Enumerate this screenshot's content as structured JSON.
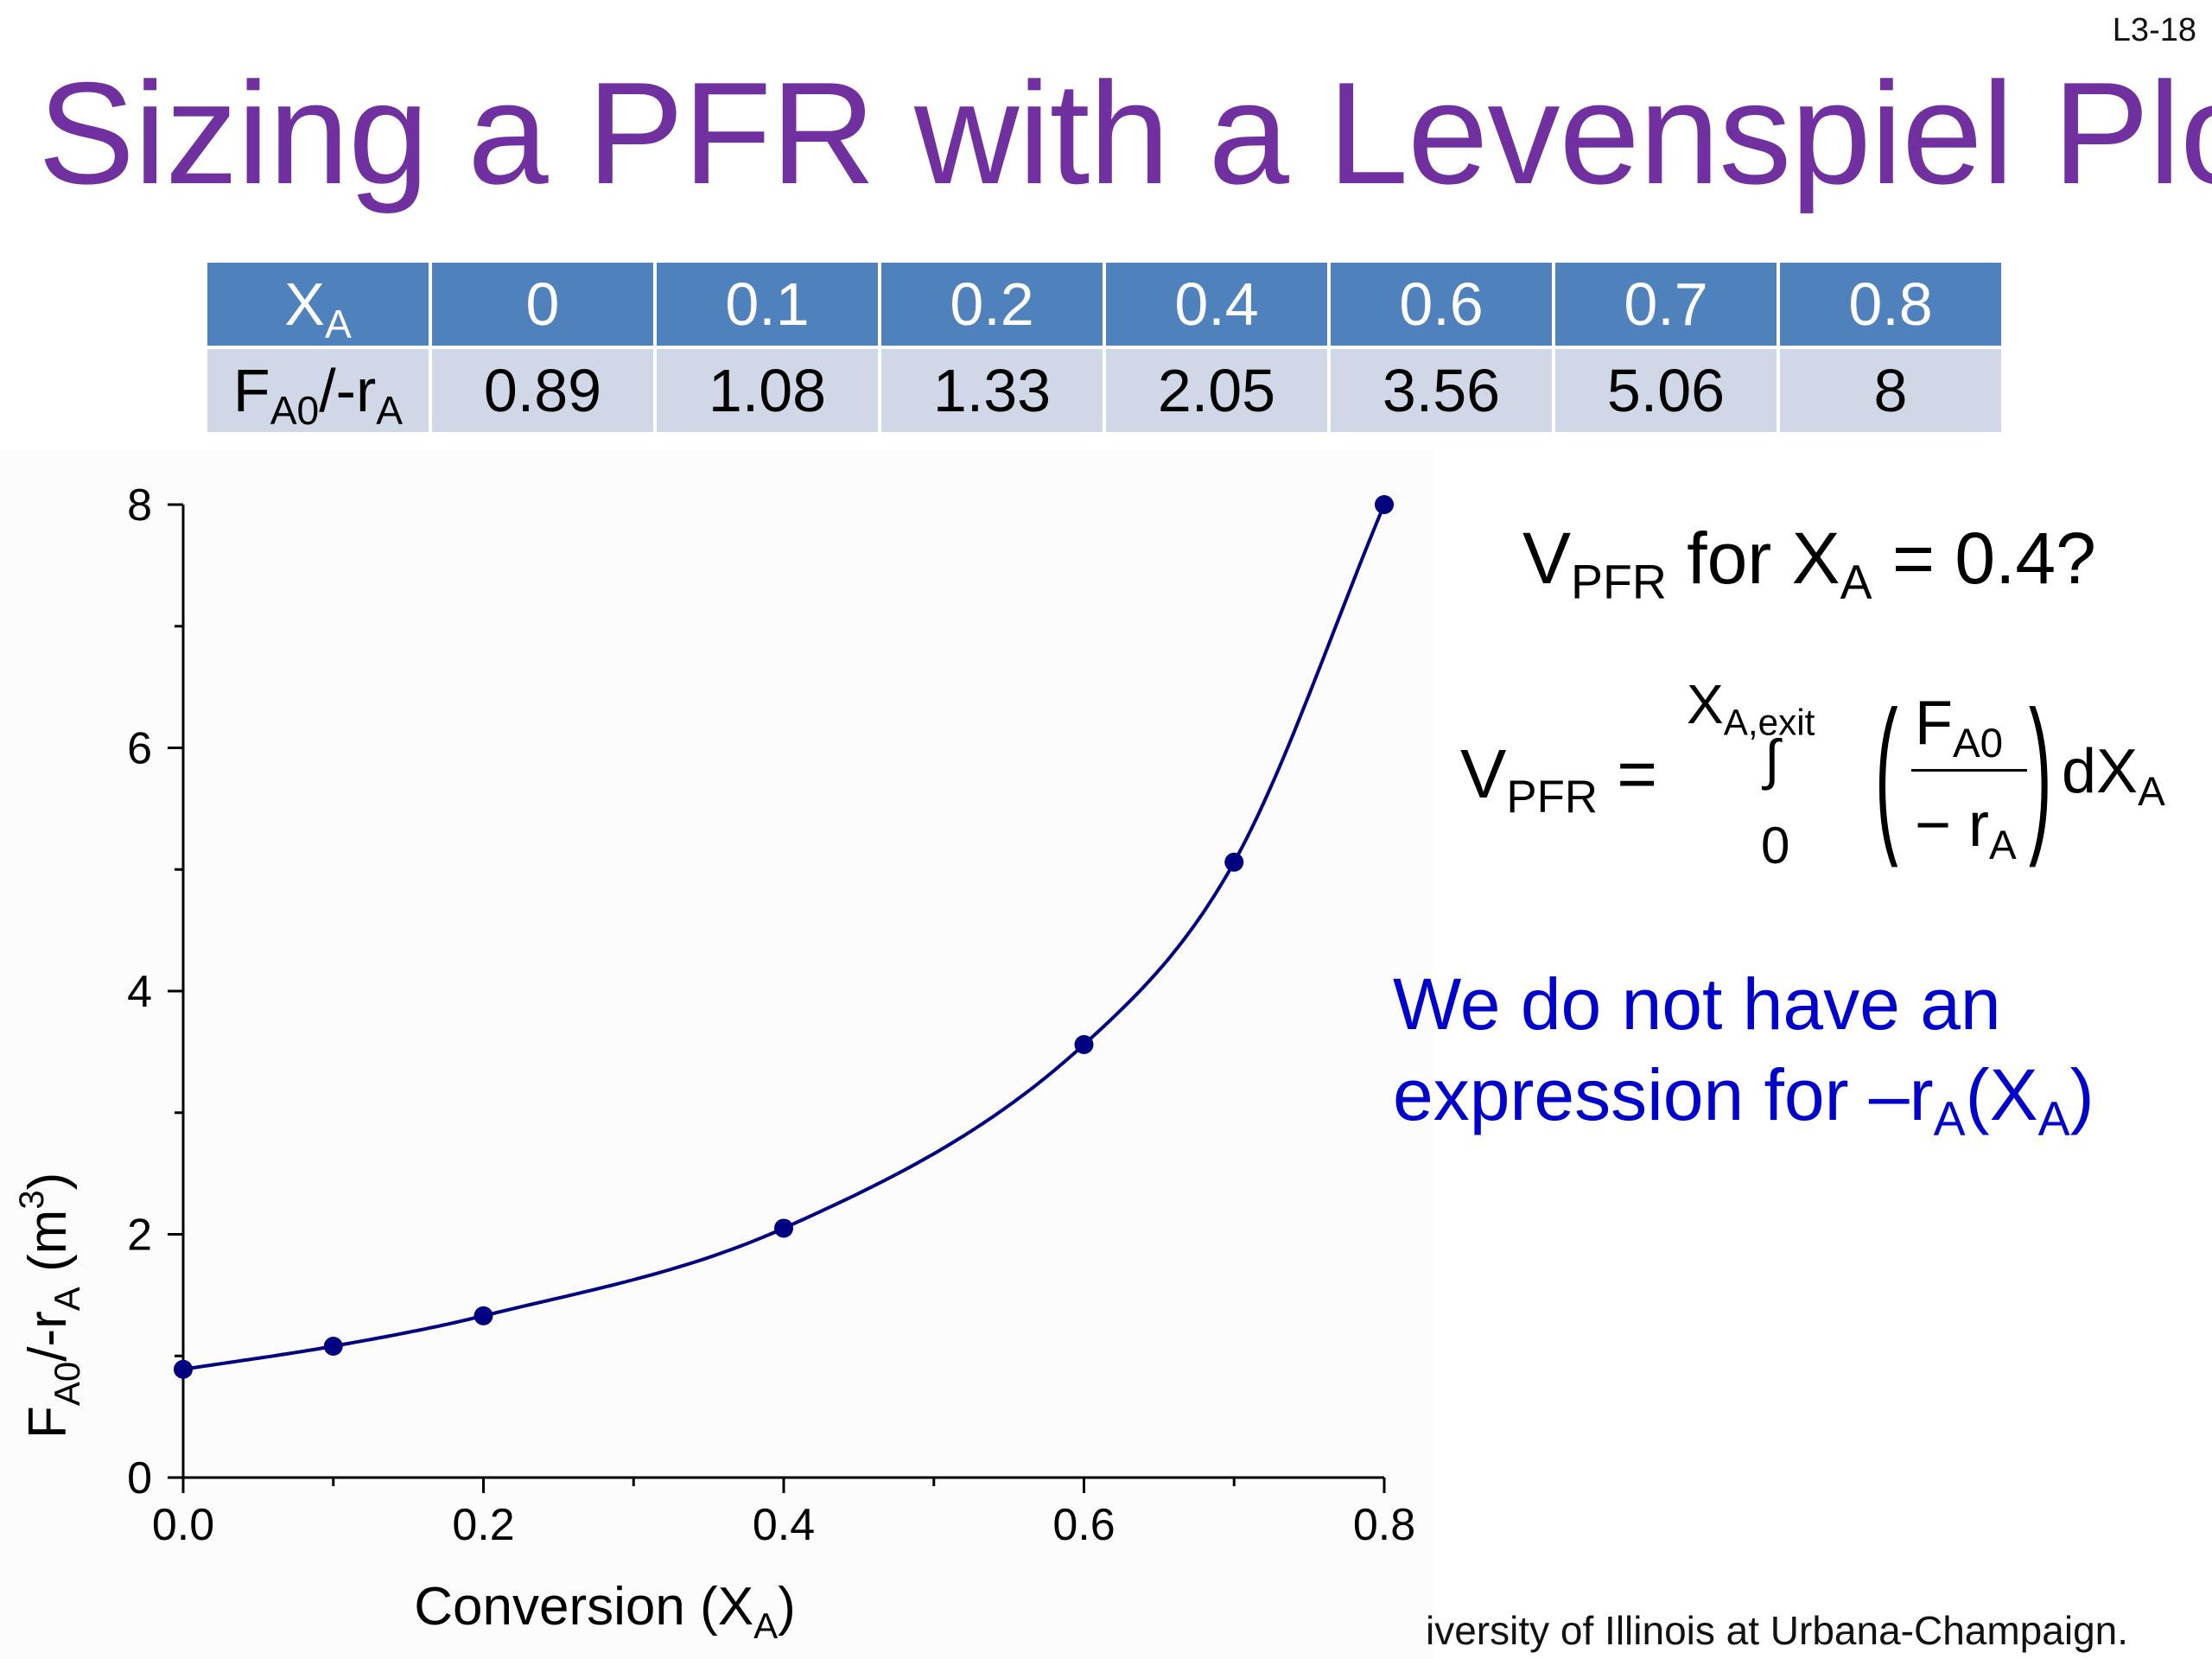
{
  "slide_number": "L3-18",
  "title": "Sizing a PFR with a Levenspiel Plot",
  "table": {
    "row_header_x": {
      "main": "X",
      "sub": "A"
    },
    "row_header_y": {
      "main": "F",
      "sub1": "A0",
      "mid": "/-r",
      "sub2": "A"
    },
    "x_values": [
      "0",
      "0.1",
      "0.2",
      "0.4",
      "0.6",
      "0.7",
      "0.8"
    ],
    "y_values": [
      "0.89",
      "1.08",
      "1.33",
      "2.05",
      "3.56",
      "5.06",
      "8"
    ]
  },
  "question": {
    "v": "V",
    "v_sub": "PFR",
    "mid": " for X",
    "x_sub": "A",
    "end": " = 0.4?"
  },
  "equation": {
    "lhs": "V",
    "lhs_sub": "PFR",
    "equals": " =",
    "upper_main": "X",
    "upper_sub": "A,exit",
    "integral": "∫",
    "lower": "0",
    "num_main": "F",
    "num_sub": "A0",
    "den_main": "− r",
    "den_sub": "A",
    "d_main": "dX",
    "d_sub": "A"
  },
  "note": {
    "line1": "We do not have an",
    "line2_main": "expression for –r",
    "line2_sub1": "A",
    "line2_mid": "(X",
    "line2_sub2": "A",
    "line2_end": ")"
  },
  "footer": "iversity of Illinois at Urbana-Champaign.",
  "chart_data": {
    "type": "scatter",
    "x": [
      0,
      0.1,
      0.2,
      0.4,
      0.6,
      0.7,
      0.8
    ],
    "y": [
      0.89,
      1.08,
      1.33,
      2.05,
      3.56,
      5.06,
      8
    ],
    "xlim": [
      0,
      0.8
    ],
    "ylim": [
      0,
      8
    ],
    "x_ticks": [
      "0.0",
      "0.2",
      "0.4",
      "0.6",
      "0.8"
    ],
    "y_ticks": [
      "0",
      "2",
      "4",
      "6",
      "8"
    ],
    "xlabel": {
      "main": "Conversion (X",
      "sub": "A",
      "end": ")"
    },
    "ylabel": {
      "f": "F",
      "sub1": "A0",
      "mid": "/-r",
      "sub2": "A",
      "unit": " (m",
      "sup": "3",
      "close": ")"
    },
    "marker_color": "#000080",
    "line_color": "#000080",
    "grid": false,
    "smooth_curve": true
  }
}
